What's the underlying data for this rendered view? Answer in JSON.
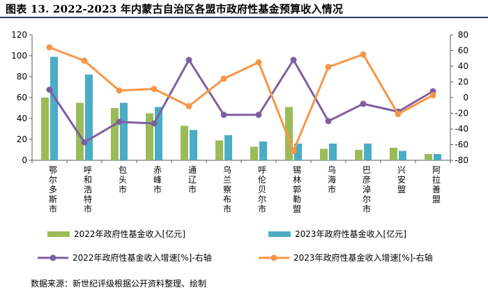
{
  "title": "图表 13. 2022-2023 年内蒙古自治区各盟市政府性基金预算收入情况",
  "source": "数据来源：新世纪评级根据公开资料整理、绘制",
  "colors": {
    "bar2022": "#9bbb59",
    "bar2023": "#4bacc6",
    "line2022": "#7d5fa0",
    "line2023": "#f79646",
    "axis": "#595959",
    "rule": "#1f3864"
  },
  "chart_data": {
    "type": "bar+line",
    "categories": [
      "鄂尔多斯市",
      "呼和浩特市",
      "包头市",
      "赤峰市",
      "通辽市",
      "乌兰察布市",
      "呼伦贝尔市",
      "锡林郭勒盟",
      "乌海市",
      "巴彦淖尔市",
      "兴安盟",
      "阿拉善盟"
    ],
    "left_axis": {
      "ylim": [
        0,
        120
      ],
      "ticks": [
        0,
        20,
        40,
        60,
        80,
        100,
        120
      ]
    },
    "right_axis": {
      "ylim": [
        -80,
        80
      ],
      "ticks": [
        -80,
        -60,
        -40,
        -20,
        0,
        20,
        40,
        60,
        80
      ]
    },
    "series": [
      {
        "name": "2022年政府性基金收入[亿元]",
        "type": "bar",
        "axis": "left",
        "values": [
          60,
          55,
          50,
          45,
          33,
          19,
          13,
          51,
          11,
          10,
          12,
          6
        ]
      },
      {
        "name": "2023年政府性基金收入[亿元]",
        "type": "bar",
        "axis": "left",
        "values": [
          99,
          82,
          55,
          51,
          29,
          24,
          18,
          16,
          16,
          16,
          9,
          6
        ]
      },
      {
        "name": "2022年政府性基金收入增速[%]-右轴",
        "type": "line",
        "axis": "right",
        "values": [
          10,
          -57,
          -31,
          -33,
          48,
          -22,
          -22,
          48,
          -30,
          -8,
          -18,
          8
        ]
      },
      {
        "name": "2023年政府性基金收入增速[%]-右轴",
        "type": "line",
        "axis": "right",
        "values": [
          64,
          47,
          9,
          11,
          -11,
          24,
          45,
          -68,
          39,
          55,
          -21,
          3
        ]
      }
    ]
  }
}
